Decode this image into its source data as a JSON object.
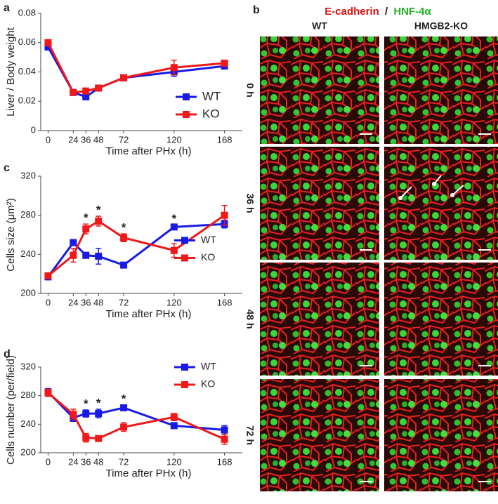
{
  "chart_data": [
    {
      "type": "line",
      "panel_label": "a",
      "xlabel": "Time after PHx (h)",
      "ylabel": "Liver / Body weight",
      "x": [
        0,
        24,
        36,
        48,
        72,
        120,
        168
      ],
      "xlim": [
        -7,
        185
      ],
      "xticks": [
        0,
        24,
        36,
        48,
        72,
        120,
        168
      ],
      "ylim": [
        0,
        0.08
      ],
      "yticks": [
        0,
        0.02,
        0.04,
        0.06,
        0.08
      ],
      "legend": "lower right",
      "series": [
        {
          "name": "WT",
          "color": "#1a1ae6",
          "values": [
            0.057,
            0.026,
            0.023,
            0.029,
            0.036,
            0.04,
            0.044
          ],
          "errors": [
            0.002,
            0.001,
            0.002,
            0.001,
            0.001,
            0.003,
            0.001
          ]
        },
        {
          "name": "KO",
          "color": "#f01818",
          "values": [
            0.06,
            0.026,
            0.027,
            0.029,
            0.036,
            0.043,
            0.046
          ],
          "errors": [
            0.002,
            0.001,
            0.001,
            0.001,
            0.001,
            0.005,
            0.001
          ]
        }
      ]
    },
    {
      "type": "line",
      "panel_label": "c",
      "xlabel": "Time after PHx (h)",
      "ylabel": "Cells size (μm²)",
      "x": [
        0,
        24,
        36,
        48,
        72,
        120,
        168
      ],
      "xlim": [
        -7,
        185
      ],
      "xticks": [
        0,
        24,
        36,
        48,
        72,
        120,
        168
      ],
      "ylim": [
        200,
        320
      ],
      "yticks": [
        200,
        240,
        280,
        320
      ],
      "legend": "center right",
      "annotations": [
        {
          "text": "*",
          "x": 36
        },
        {
          "text": "*",
          "x": 48
        },
        {
          "text": "*",
          "x": 72
        },
        {
          "text": "*",
          "x": 120
        }
      ],
      "series": [
        {
          "name": "WT",
          "color": "#1a1ae6",
          "values": [
            217,
            252,
            239,
            238,
            229,
            268,
            271
          ],
          "errors": [
            3,
            3,
            3,
            8,
            2,
            2,
            4
          ]
        },
        {
          "name": "KO",
          "color": "#f01818",
          "values": [
            218,
            239,
            266,
            274,
            257,
            244,
            280
          ],
          "errors": [
            3,
            7,
            5,
            5,
            4,
            7,
            10
          ]
        }
      ]
    },
    {
      "type": "line",
      "panel_label": "d",
      "xlabel": "Time after PHx (h)",
      "ylabel": "Cells number (per/field)",
      "x": [
        0,
        24,
        36,
        48,
        72,
        120,
        168
      ],
      "xlim": [
        -7,
        185
      ],
      "xticks": [
        0,
        24,
        36,
        48,
        72,
        120,
        168
      ],
      "ylim": [
        200,
        320
      ],
      "yticks": [
        200,
        240,
        280,
        320
      ],
      "legend": "upper right",
      "annotations": [
        {
          "text": "*",
          "x": 36
        },
        {
          "text": "*",
          "x": 48
        },
        {
          "text": "*",
          "x": 72
        }
      ],
      "series": [
        {
          "name": "WT",
          "color": "#1a1ae6",
          "values": [
            285,
            249,
            255,
            255,
            263,
            238,
            232
          ],
          "errors": [
            5,
            5,
            5,
            6,
            4,
            3,
            6
          ]
        },
        {
          "name": "KO",
          "color": "#f01818",
          "values": [
            284,
            254,
            221,
            220,
            236,
            250,
            219
          ],
          "errors": [
            5,
            7,
            6,
            3,
            6,
            5,
            7
          ]
        }
      ]
    }
  ],
  "panel_b": {
    "panel_label": "b",
    "title_parts": [
      "E-cadherin",
      "/",
      "HNF-4α"
    ],
    "columns": [
      "WT",
      "HMGB2-KO"
    ],
    "rows": [
      "0 h",
      "36 h",
      "48 h",
      "72 h"
    ]
  }
}
